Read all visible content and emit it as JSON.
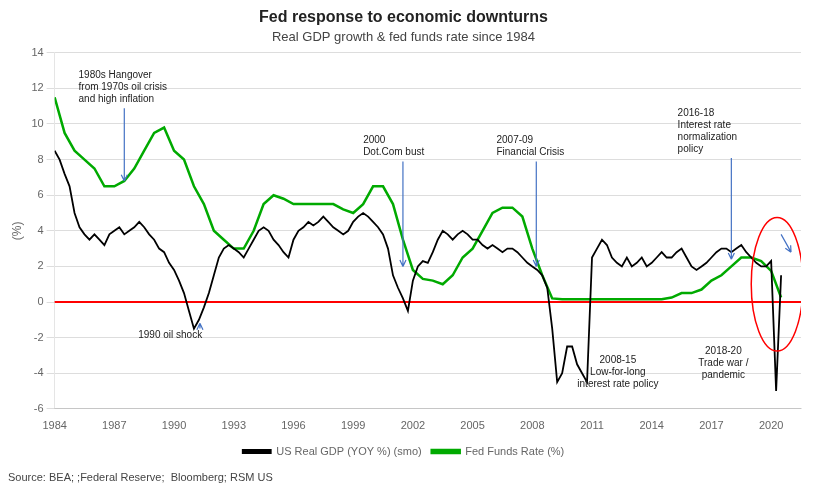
{
  "chart_data": {
    "type": "line",
    "title": "Fed response to economic downturns",
    "subtitle": "Real GDP growth & fed funds rate since 1984",
    "source": "Source: BEA; ;Federal Reserve;  Bloomberg; RSM US",
    "ylabel": "(%)",
    "xlim": [
      1984,
      2021.5
    ],
    "ylim": [
      -6,
      14
    ],
    "xticks": [
      1984,
      1987,
      1990,
      1993,
      1996,
      1999,
      2002,
      2005,
      2008,
      2011,
      2014,
      2017,
      2020
    ],
    "yticks": [
      -6,
      -4,
      -2,
      0,
      2,
      4,
      6,
      8,
      10,
      12,
      14
    ],
    "grid": true,
    "legend": "bottom",
    "annotations": [
      "1980s Hangover\nfrom 1970s oil crisis\nand high inflation",
      "1990 oil shock",
      "2000\nDot.Com bust",
      "2007-09\nFinancial Crisis",
      "2016-18\nInterest rate\nnormalization\npolicy",
      "2008-15\nLow-for-long\ninterest rate policy",
      "2018-20\nTrade war /\npandemic"
    ],
    "series": [
      {
        "name": "US Real GDP (YOY %) (smo)",
        "color": "#000000",
        "x": [
          1984.0,
          1984.25,
          1984.5,
          1984.75,
          1985.0,
          1985.25,
          1985.5,
          1985.75,
          1986.0,
          1986.25,
          1986.5,
          1986.75,
          1987.0,
          1987.25,
          1987.5,
          1987.75,
          1988.0,
          1988.25,
          1988.5,
          1988.75,
          1989.0,
          1989.25,
          1989.5,
          1989.75,
          1990.0,
          1990.25,
          1990.5,
          1990.75,
          1991.0,
          1991.25,
          1991.5,
          1991.75,
          1992.0,
          1992.25,
          1992.5,
          1992.75,
          1993.0,
          1993.25,
          1993.5,
          1993.75,
          1994.0,
          1994.25,
          1994.5,
          1994.75,
          1995.0,
          1995.25,
          1995.5,
          1995.75,
          1996.0,
          1996.25,
          1996.5,
          1996.75,
          1997.0,
          1997.25,
          1997.5,
          1997.75,
          1998.0,
          1998.25,
          1998.5,
          1998.75,
          1999.0,
          1999.25,
          1999.5,
          1999.75,
          2000.0,
          2000.25,
          2000.5,
          2000.75,
          2001.0,
          2001.25,
          2001.5,
          2001.75,
          2002.0,
          2002.25,
          2002.5,
          2002.75,
          2003.0,
          2003.25,
          2003.5,
          2003.75,
          2004.0,
          2004.25,
          2004.5,
          2004.75,
          2005.0,
          2005.25,
          2005.5,
          2005.75,
          2006.0,
          2006.25,
          2006.5,
          2006.75,
          2007.0,
          2007.25,
          2007.5,
          2007.75,
          2008.0,
          2008.25,
          2008.5,
          2008.75,
          2009.0,
          2009.25,
          2009.5,
          2009.75,
          2010.0,
          2010.25,
          2010.5,
          2010.75,
          2011.0,
          2011.25,
          2011.5,
          2011.75,
          2012.0,
          2012.25,
          2012.5,
          2012.75,
          2013.0,
          2013.25,
          2013.5,
          2013.75,
          2014.0,
          2014.25,
          2014.5,
          2014.75,
          2015.0,
          2015.25,
          2015.5,
          2015.75,
          2016.0,
          2016.25,
          2016.5,
          2016.75,
          2017.0,
          2017.25,
          2017.5,
          2017.75,
          2018.0,
          2018.25,
          2018.5,
          2018.75,
          2019.0,
          2019.25,
          2019.5,
          2019.75,
          2020.0,
          2020.25,
          2020.5
        ],
        "values": [
          8.5,
          8.0,
          7.2,
          6.5,
          5.0,
          4.2,
          3.8,
          3.5,
          3.8,
          3.5,
          3.2,
          3.8,
          4.0,
          4.2,
          3.8,
          4.0,
          4.2,
          4.5,
          4.2,
          3.8,
          3.5,
          3.0,
          2.8,
          2.2,
          1.8,
          1.2,
          0.5,
          -0.5,
          -1.5,
          -1.0,
          -0.3,
          0.5,
          1.5,
          2.5,
          3.0,
          3.2,
          3.0,
          2.8,
          2.5,
          3.0,
          3.5,
          4.0,
          4.2,
          4.0,
          3.5,
          3.2,
          2.8,
          2.5,
          3.5,
          4.0,
          4.2,
          4.5,
          4.3,
          4.5,
          4.8,
          4.5,
          4.2,
          4.0,
          3.8,
          4.0,
          4.5,
          4.8,
          5.0,
          4.8,
          4.5,
          4.2,
          3.8,
          3.0,
          1.5,
          0.8,
          0.2,
          -0.5,
          1.2,
          2.0,
          2.3,
          2.2,
          2.8,
          3.5,
          4.0,
          3.8,
          3.5,
          3.8,
          4.0,
          3.8,
          3.5,
          3.5,
          3.2,
          3.0,
          3.2,
          3.0,
          2.8,
          3.0,
          3.0,
          2.8,
          2.5,
          2.2,
          2.0,
          1.8,
          1.5,
          0.8,
          -1.5,
          -4.5,
          -4.0,
          -2.5,
          -2.5,
          -3.5,
          -4.0,
          -4.5,
          2.5,
          3.0,
          3.5,
          3.2,
          2.5,
          2.2,
          2.0,
          2.5,
          2.0,
          2.2,
          2.5,
          2.0,
          2.2,
          2.5,
          2.8,
          2.5,
          2.5,
          2.8,
          3.0,
          2.5,
          2.0,
          1.8,
          2.0,
          2.2,
          2.5,
          2.8,
          3.0,
          3.0,
          2.8,
          3.0,
          3.2,
          2.8,
          2.5,
          2.2,
          2.0,
          2.0,
          2.3,
          -5.0,
          1.5
        ]
      },
      {
        "name": "Fed Funds Rate (%)",
        "color": "#00aa00",
        "x": [
          1984.0,
          1984.5,
          1985.0,
          1985.5,
          1986.0,
          1986.5,
          1987.0,
          1987.5,
          1988.0,
          1988.5,
          1989.0,
          1989.5,
          1990.0,
          1990.5,
          1991.0,
          1991.5,
          1992.0,
          1992.5,
          1993.0,
          1993.5,
          1994.0,
          1994.5,
          1995.0,
          1995.5,
          1996.0,
          1996.5,
          1997.0,
          1997.5,
          1998.0,
          1998.5,
          1999.0,
          1999.5,
          2000.0,
          2000.5,
          2001.0,
          2001.5,
          2002.0,
          2002.5,
          2003.0,
          2003.5,
          2004.0,
          2004.5,
          2005.0,
          2005.5,
          2006.0,
          2006.5,
          2007.0,
          2007.5,
          2008.0,
          2008.5,
          2009.0,
          2009.5,
          2010.0,
          2010.5,
          2011.0,
          2011.5,
          2012.0,
          2012.5,
          2013.0,
          2013.5,
          2014.0,
          2014.5,
          2015.0,
          2015.5,
          2016.0,
          2016.5,
          2017.0,
          2017.5,
          2018.0,
          2018.5,
          2019.0,
          2019.5,
          2020.0,
          2020.5
        ],
        "values": [
          11.5,
          9.5,
          8.5,
          8.0,
          7.5,
          6.5,
          6.5,
          6.8,
          7.5,
          8.5,
          9.5,
          9.8,
          8.5,
          8.0,
          6.5,
          5.5,
          4.0,
          3.5,
          3.0,
          3.0,
          4.0,
          5.5,
          6.0,
          5.8,
          5.5,
          5.5,
          5.5,
          5.5,
          5.5,
          5.2,
          5.0,
          5.5,
          6.5,
          6.5,
          5.5,
          3.5,
          1.8,
          1.3,
          1.2,
          1.0,
          1.5,
          2.5,
          3.0,
          4.0,
          5.0,
          5.3,
          5.3,
          4.8,
          3.0,
          1.5,
          0.2,
          0.15,
          0.15,
          0.15,
          0.15,
          0.15,
          0.15,
          0.15,
          0.15,
          0.15,
          0.15,
          0.15,
          0.25,
          0.5,
          0.5,
          0.7,
          1.2,
          1.5,
          2.0,
          2.5,
          2.5,
          2.3,
          1.75,
          0.25
        ]
      }
    ]
  }
}
